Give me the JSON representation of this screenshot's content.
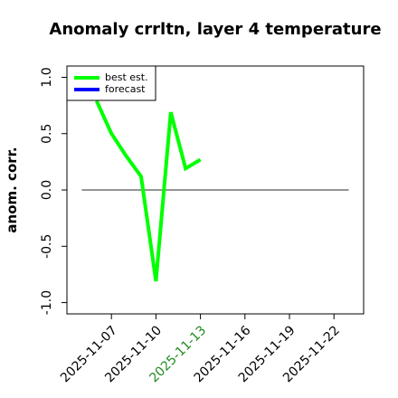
{
  "chart_data": {
    "type": "line",
    "title": "Anomaly crrltn, layer 4 temperature",
    "ylabel": "anom. corr.",
    "x": [
      "2025-11-06",
      "2025-11-07",
      "2025-11-08",
      "2025-11-09",
      "2025-11-10",
      "2025-11-11",
      "2025-11-12",
      "2025-11-13"
    ],
    "series": [
      {
        "name": "best est.",
        "color": "#00ff00",
        "values": [
          0.79,
          0.5,
          0.3,
          0.12,
          -0.81,
          0.69,
          0.19,
          0.27
        ]
      },
      {
        "name": "forecast",
        "color": "#0000ff",
        "values": [
          null,
          null,
          null,
          null,
          null,
          null,
          null,
          null
        ]
      }
    ],
    "xlim": [
      "2025-11-04",
      "2025-11-24"
    ],
    "xticks": [
      "2025-11-07",
      "2025-11-10",
      "2025-11-13",
      "2025-11-16",
      "2025-11-19",
      "2025-11-22"
    ],
    "xtick_colors": [
      "#000000",
      "#000000",
      "#228b22",
      "#000000",
      "#000000",
      "#000000"
    ],
    "ylim": [
      -1.1,
      1.1
    ],
    "yticks": [
      {
        "value": -1,
        "label": "-1.0"
      },
      {
        "value": -0.5,
        "label": "-0.5"
      },
      {
        "value": 0,
        "label": "0.0"
      },
      0.5,
      {
        "value": 1,
        "label": "1.0"
      }
    ],
    "hline": {
      "y": 0,
      "xlim": [
        "2025-11-05",
        "2025-11-23"
      ]
    },
    "legend": "upper left"
  }
}
